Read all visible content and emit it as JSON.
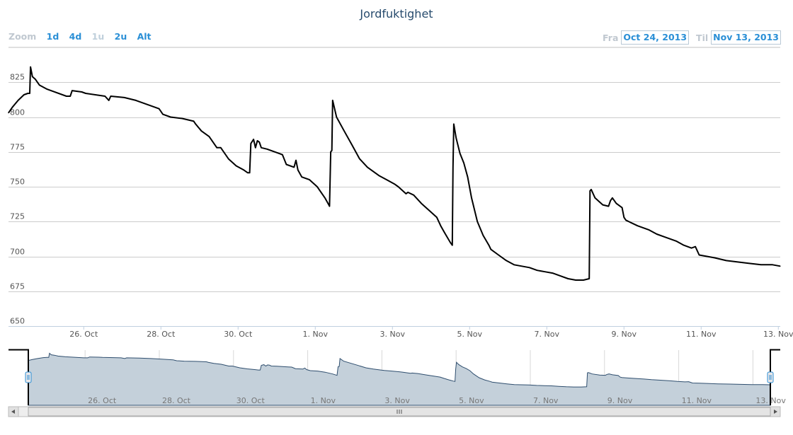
{
  "title": "Jordfuktighet",
  "zoom": {
    "label": "Zoom",
    "buttons": [
      {
        "label": "1d",
        "enabled": true
      },
      {
        "label": "4d",
        "enabled": true
      },
      {
        "label": "1u",
        "enabled": false
      },
      {
        "label": "2u",
        "enabled": true
      },
      {
        "label": "Alt",
        "enabled": true
      }
    ]
  },
  "range": {
    "from_label": "Fra",
    "from_value": "Oct 24, 2013",
    "to_label": "Til",
    "to_value": "Nov 13, 2013"
  },
  "colors": {
    "title": "#274b6d",
    "line": "#000000",
    "accent": "#2a8fd6",
    "navigator_fill": "#c4d0da",
    "navigator_line": "#2f4e6e",
    "grid": "#cccccc"
  },
  "chart_data": {
    "type": "line",
    "title": "Jordfuktighet",
    "xlabel": "",
    "ylabel": "",
    "x_range_days": [
      0,
      20
    ],
    "ylim": [
      650,
      850
    ],
    "yticks": [
      650,
      675,
      700,
      725,
      750,
      775,
      800,
      825
    ],
    "xtick_labels": [
      "26. Oct",
      "28. Oct",
      "30. Oct",
      "1. Nov",
      "3. Nov",
      "5. Nov",
      "7. Nov",
      "9. Nov",
      "11. Nov",
      "13. Nov"
    ],
    "xtick_days": [
      1.95,
      3.95,
      5.95,
      7.95,
      9.95,
      11.95,
      13.95,
      15.95,
      17.95,
      19.95
    ],
    "grid": true,
    "legend": "none",
    "series": [
      {
        "points": [
          [
            0.0,
            803
          ],
          [
            0.1,
            807
          ],
          [
            0.25,
            812
          ],
          [
            0.4,
            816
          ],
          [
            0.5,
            817
          ],
          [
            0.55,
            817
          ],
          [
            0.57,
            836
          ],
          [
            0.62,
            829
          ],
          [
            0.7,
            827
          ],
          [
            0.8,
            823
          ],
          [
            1.0,
            820
          ],
          [
            1.5,
            815
          ],
          [
            1.6,
            815
          ],
          [
            1.65,
            819
          ],
          [
            1.9,
            818
          ],
          [
            2.0,
            817
          ],
          [
            2.5,
            815
          ],
          [
            2.6,
            812
          ],
          [
            2.65,
            815
          ],
          [
            3.0,
            814
          ],
          [
            3.3,
            812
          ],
          [
            3.6,
            809
          ],
          [
            3.9,
            806
          ],
          [
            3.95,
            804
          ],
          [
            4.0,
            802
          ],
          [
            4.2,
            800
          ],
          [
            4.5,
            799
          ],
          [
            4.8,
            797
          ],
          [
            4.85,
            795
          ],
          [
            5.0,
            790
          ],
          [
            5.2,
            786
          ],
          [
            5.4,
            778
          ],
          [
            5.5,
            778
          ],
          [
            5.7,
            770
          ],
          [
            5.9,
            765
          ],
          [
            6.1,
            762
          ],
          [
            6.2,
            760
          ],
          [
            6.25,
            760
          ],
          [
            6.28,
            781
          ],
          [
            6.35,
            784
          ],
          [
            6.4,
            778
          ],
          [
            6.45,
            783
          ],
          [
            6.5,
            782
          ],
          [
            6.55,
            778
          ],
          [
            6.7,
            777
          ],
          [
            7.0,
            774
          ],
          [
            7.1,
            773
          ],
          [
            7.2,
            766
          ],
          [
            7.4,
            764
          ],
          [
            7.45,
            769
          ],
          [
            7.5,
            762
          ],
          [
            7.6,
            757
          ],
          [
            7.8,
            755
          ],
          [
            8.0,
            750
          ],
          [
            8.2,
            742
          ],
          [
            8.3,
            737
          ],
          [
            8.32,
            736
          ],
          [
            8.35,
            775
          ],
          [
            8.38,
            776
          ],
          [
            8.4,
            812
          ],
          [
            8.5,
            800
          ],
          [
            8.7,
            790
          ],
          [
            8.9,
            780
          ],
          [
            9.1,
            770
          ],
          [
            9.3,
            764
          ],
          [
            9.5,
            760
          ],
          [
            9.6,
            758
          ],
          [
            9.8,
            755
          ],
          [
            10.0,
            752
          ],
          [
            10.1,
            750
          ],
          [
            10.3,
            745
          ],
          [
            10.35,
            746
          ],
          [
            10.5,
            744
          ],
          [
            10.7,
            738
          ],
          [
            10.9,
            733
          ],
          [
            11.1,
            728
          ],
          [
            11.2,
            722
          ],
          [
            11.3,
            717
          ],
          [
            11.45,
            710
          ],
          [
            11.5,
            708
          ],
          [
            11.52,
            764
          ],
          [
            11.54,
            795
          ],
          [
            11.6,
            785
          ],
          [
            11.7,
            774
          ],
          [
            11.8,
            767
          ],
          [
            11.9,
            757
          ],
          [
            12.0,
            742
          ],
          [
            12.15,
            725
          ],
          [
            12.3,
            715
          ],
          [
            12.45,
            708
          ],
          [
            12.5,
            705
          ],
          [
            12.7,
            701
          ],
          [
            12.9,
            697
          ],
          [
            13.1,
            694
          ],
          [
            13.3,
            693
          ],
          [
            13.5,
            692
          ],
          [
            13.7,
            690
          ],
          [
            13.9,
            689
          ],
          [
            14.1,
            688
          ],
          [
            14.3,
            686
          ],
          [
            14.5,
            684
          ],
          [
            14.7,
            683
          ],
          [
            14.9,
            683
          ],
          [
            15.05,
            684
          ],
          [
            15.07,
            747
          ],
          [
            15.1,
            748
          ],
          [
            15.2,
            742
          ],
          [
            15.4,
            737
          ],
          [
            15.55,
            736
          ],
          [
            15.6,
            740
          ],
          [
            15.65,
            742
          ],
          [
            15.75,
            738
          ],
          [
            15.9,
            735
          ],
          [
            15.95,
            728
          ],
          [
            16.0,
            726
          ],
          [
            16.3,
            722
          ],
          [
            16.6,
            719
          ],
          [
            16.8,
            716
          ],
          [
            17.0,
            714
          ],
          [
            17.3,
            711
          ],
          [
            17.5,
            708
          ],
          [
            17.7,
            706
          ],
          [
            17.8,
            707
          ],
          [
            17.9,
            701
          ],
          [
            18.1,
            700
          ],
          [
            18.3,
            699
          ],
          [
            18.6,
            697
          ],
          [
            18.9,
            696
          ],
          [
            19.2,
            695
          ],
          [
            19.5,
            694
          ],
          [
            19.8,
            694
          ],
          [
            20.0,
            693
          ]
        ]
      }
    ]
  }
}
